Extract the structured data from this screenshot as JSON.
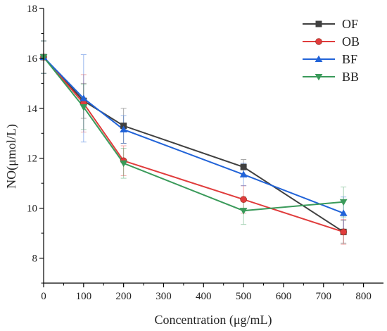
{
  "chart_data": {
    "type": "line",
    "title": "",
    "xlabel": "Concentration (μg/mL)",
    "ylabel": "NO(μmol/L)",
    "xlim": [
      0,
      850
    ],
    "ylim": [
      7,
      18
    ],
    "x_ticks": [
      0,
      100,
      200,
      300,
      400,
      500,
      600,
      700,
      800
    ],
    "y_ticks": [
      8,
      10,
      12,
      14,
      16,
      18
    ],
    "legend_position": "top-right",
    "x": [
      0,
      100,
      200,
      500,
      750
    ],
    "series": [
      {
        "name": "OF",
        "color": "#404040",
        "marker": "square",
        "values": [
          16.05,
          14.3,
          13.3,
          11.65,
          9.05
        ],
        "errors": [
          0.65,
          0.7,
          0.7,
          0.3,
          0.45
        ]
      },
      {
        "name": "OB",
        "color": "#e03c3c",
        "marker": "circle",
        "values": [
          16.05,
          14.2,
          11.9,
          10.35,
          9.05
        ],
        "errors": [
          0.65,
          1.15,
          0.6,
          0.55,
          0.5
        ]
      },
      {
        "name": "BF",
        "color": "#2163d8",
        "marker": "triangle-up",
        "values": [
          16.05,
          14.4,
          13.15,
          11.35,
          9.8
        ],
        "errors": [
          0.65,
          1.75,
          0.55,
          0.45,
          0.65
        ]
      },
      {
        "name": "BB",
        "color": "#3a9a5a",
        "marker": "triangle-down",
        "values": [
          16.05,
          14.05,
          11.8,
          9.9,
          10.25
        ],
        "errors": [
          0.65,
          0.9,
          0.6,
          0.55,
          0.6
        ]
      }
    ]
  }
}
